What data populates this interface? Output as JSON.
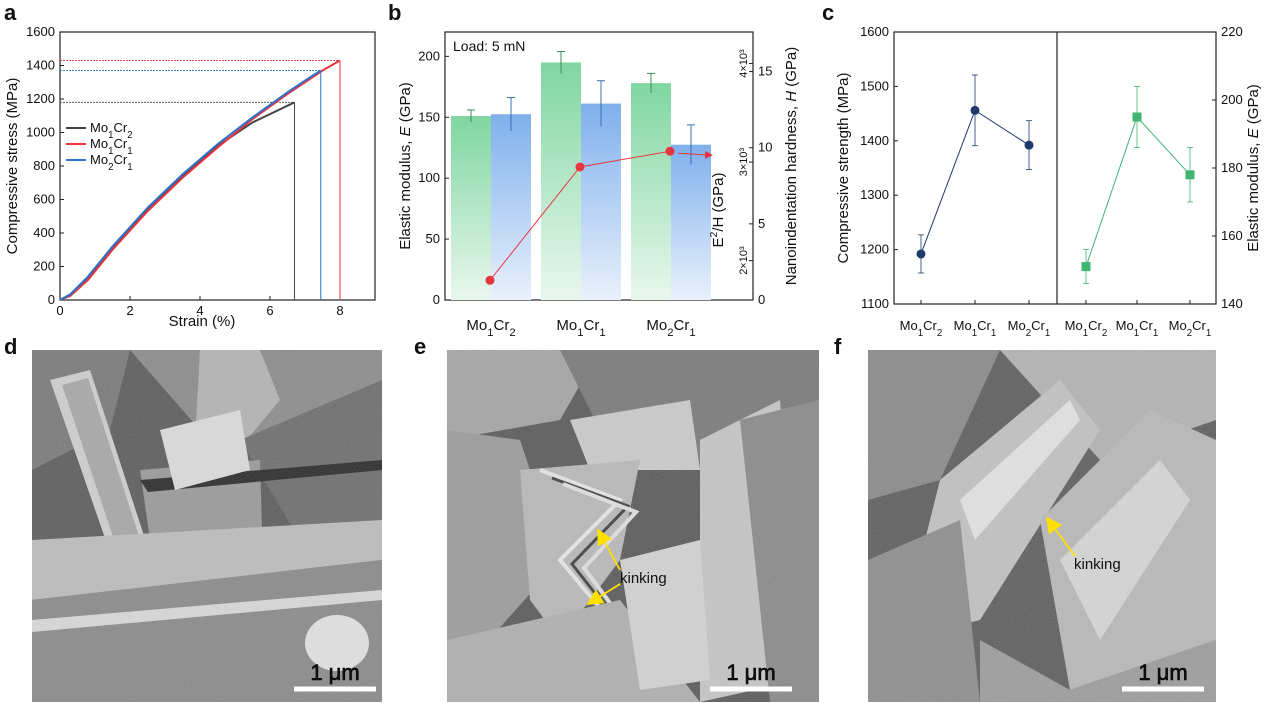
{
  "panels": {
    "a": "a",
    "b": "b",
    "c": "c",
    "d": "d",
    "e": "e",
    "f": "f"
  },
  "sem": {
    "d": {
      "scale": "1 μm"
    },
    "e": {
      "scale": "1 μm",
      "annotation": "kinking"
    },
    "f": {
      "scale": "1 μm",
      "annotation": "kinking"
    }
  },
  "chart_data": [
    {
      "type": "line",
      "panel": "a",
      "xlabel": "Strain (%)",
      "ylabel": "Compressive stress (MPa)",
      "xlim": [
        0,
        9
      ],
      "ylim": [
        0,
        1600
      ],
      "xticks": [
        0,
        2,
        4,
        6,
        8
      ],
      "yticks": [
        0,
        200,
        400,
        600,
        800,
        1000,
        1200,
        1400,
        1600
      ],
      "legend": [
        "Mo1Cr2",
        "Mo1Cr1",
        "Mo2Cr1"
      ],
      "legend_placement": "center-left",
      "colors": {
        "Mo1Cr2": "#444444",
        "Mo1Cr1": "#e8343f",
        "Mo2Cr1": "#2e73c9"
      },
      "series": [
        {
          "name": "Mo1Cr2",
          "fracture_strain": 6.7,
          "peak_stress": 1180,
          "x": [
            0,
            0.3,
            0.8,
            1.5,
            2.5,
            3.5,
            4.5,
            5.5,
            6.2,
            6.5,
            6.7
          ],
          "y": [
            0,
            30,
            130,
            310,
            540,
            740,
            920,
            1060,
            1130,
            1160,
            1180
          ]
        },
        {
          "name": "Mo1Cr1",
          "fracture_strain": 8.0,
          "peak_stress": 1430,
          "x": [
            0,
            0.3,
            0.8,
            1.5,
            2.5,
            3.5,
            4.5,
            5.5,
            6.5,
            7.0,
            7.5,
            8.0
          ],
          "y": [
            0,
            25,
            120,
            300,
            530,
            730,
            910,
            1080,
            1230,
            1300,
            1370,
            1430
          ]
        },
        {
          "name": "Mo2Cr1",
          "fracture_strain": 7.45,
          "peak_stress": 1370,
          "x": [
            0,
            0.3,
            0.8,
            1.5,
            2.5,
            3.5,
            4.5,
            5.5,
            6.5,
            7.0,
            7.45
          ],
          "y": [
            0,
            35,
            140,
            320,
            550,
            750,
            930,
            1090,
            1240,
            1310,
            1370
          ]
        }
      ]
    },
    {
      "type": "bar",
      "panel": "b",
      "annotation": "Load: 5 mN",
      "categories": [
        "Mo1Cr2",
        "Mo1Cr1",
        "Mo2Cr1"
      ],
      "ylabel": "Elastic modulus, E (GPa)",
      "y2label": "Nanoindentation hardness, H (GPa)",
      "y3label": "E2/H (GPa)",
      "ylim": [
        0,
        220
      ],
      "y2lim": [
        0,
        17.6
      ],
      "yticks": [
        0,
        50,
        100,
        150,
        200
      ],
      "y2ticks": [
        0,
        5,
        10,
        15
      ],
      "y3ticks": [
        "2×10³",
        "3×10³",
        "4×10³"
      ],
      "series": [
        {
          "name": "Elastic modulus",
          "axis": "left",
          "color": "#7fd6a0",
          "values": [
            151,
            195,
            178
          ],
          "errors": [
            5,
            9,
            8
          ]
        },
        {
          "name": "Nanoindentation hardness",
          "axis": "right",
          "color": "#7fb0ec",
          "values": [
            12.2,
            12.9,
            10.2
          ],
          "errors": [
            1.1,
            1.5,
            1.3
          ]
        },
        {
          "name": "E2/H",
          "type": "line",
          "color": "#e8343f",
          "values": [
            1800,
            2950,
            3110
          ],
          "y3lim": [
            1600,
            4320
          ]
        }
      ]
    },
    {
      "type": "scatter",
      "panel": "c-left",
      "categories": [
        "Mo1Cr2",
        "Mo1Cr1",
        "Mo2Cr1"
      ],
      "ylabel": "Compressive strength (MPa)",
      "ylim": [
        1100,
        1600
      ],
      "yticks": [
        1100,
        1200,
        1300,
        1400,
        1500,
        1600
      ],
      "color": "#1f3a6b",
      "values": [
        1192,
        1456,
        1392
      ],
      "errors": [
        35,
        65,
        45
      ]
    },
    {
      "type": "scatter",
      "panel": "c-right",
      "categories": [
        "Mo1Cr2",
        "Mo1Cr1",
        "Mo2Cr1"
      ],
      "ylabel": "Elastic modulus, E (GPa)",
      "ylim": [
        140,
        220
      ],
      "yticks": [
        140,
        160,
        180,
        200,
        220
      ],
      "color": "#3fb56f",
      "values": [
        151,
        195,
        178
      ],
      "errors": [
        5,
        9,
        8
      ]
    }
  ]
}
